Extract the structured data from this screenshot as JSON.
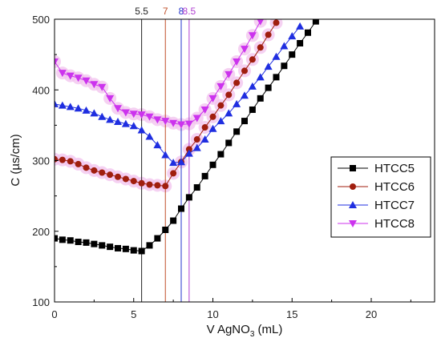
{
  "chart_data": {
    "type": "scatter",
    "title": "",
    "xlabel": {
      "prefix": "V AgNO",
      "sub": "3",
      "suffix": " (mL)"
    },
    "ylabel": "C (µs/cm)",
    "xlim": [
      0,
      24
    ],
    "ylim": [
      100,
      500
    ],
    "x_ticks": [
      0,
      5,
      10,
      15,
      20
    ],
    "y_ticks": [
      100,
      200,
      300,
      400,
      500
    ],
    "grid": false,
    "legend_position": "right",
    "vertical_lines": [
      {
        "x": 5.5,
        "label": "5.5",
        "color": "#222222"
      },
      {
        "x": 7,
        "label": "7",
        "color": "#c0502a"
      },
      {
        "x": 8,
        "label": "8",
        "color": "#2233cc"
      },
      {
        "x": 8.5,
        "label": "8.5",
        "color": "#b040d0"
      }
    ],
    "series": [
      {
        "name": "HTCC5",
        "marker": "square",
        "color": "#000000",
        "halo": false,
        "points": [
          [
            0,
            190
          ],
          [
            0.5,
            188
          ],
          [
            1,
            187
          ],
          [
            1.5,
            185
          ],
          [
            2,
            184
          ],
          [
            2.5,
            182
          ],
          [
            3,
            180
          ],
          [
            3.5,
            178
          ],
          [
            4,
            176
          ],
          [
            4.5,
            175
          ],
          [
            5,
            173
          ],
          [
            5.5,
            172
          ],
          [
            6,
            180
          ],
          [
            6.5,
            190
          ],
          [
            7,
            202
          ],
          [
            7.5,
            215
          ],
          [
            8,
            232
          ],
          [
            8.5,
            248
          ],
          [
            9,
            262
          ],
          [
            9.5,
            278
          ],
          [
            10,
            294
          ],
          [
            10.5,
            309
          ],
          [
            11,
            325
          ],
          [
            11.5,
            341
          ],
          [
            12,
            356
          ],
          [
            12.5,
            372
          ],
          [
            13,
            388
          ],
          [
            13.5,
            403
          ],
          [
            14,
            418
          ],
          [
            14.5,
            434
          ],
          [
            15,
            450
          ],
          [
            15.5,
            466
          ],
          [
            16,
            481
          ],
          [
            16.5,
            497
          ]
        ]
      },
      {
        "name": "HTCC6",
        "marker": "circle",
        "color": "#a01e0e",
        "halo": true,
        "points": [
          [
            0,
            302
          ],
          [
            0.5,
            301
          ],
          [
            1,
            299
          ],
          [
            1.5,
            295
          ],
          [
            2,
            290
          ],
          [
            2.5,
            286
          ],
          [
            3,
            283
          ],
          [
            3.5,
            280
          ],
          [
            4,
            277
          ],
          [
            4.5,
            274
          ],
          [
            5,
            271
          ],
          [
            5.5,
            268
          ],
          [
            6,
            266
          ],
          [
            6.5,
            265
          ],
          [
            7,
            264
          ],
          [
            7.5,
            282
          ],
          [
            8,
            298
          ],
          [
            8.5,
            316
          ],
          [
            9,
            330
          ],
          [
            9.5,
            347
          ],
          [
            10,
            362
          ],
          [
            10.5,
            378
          ],
          [
            11,
            393
          ],
          [
            11.5,
            410
          ],
          [
            12,
            427
          ],
          [
            12.5,
            443
          ],
          [
            13,
            460
          ],
          [
            13.5,
            478
          ],
          [
            14,
            495
          ]
        ]
      },
      {
        "name": "HTCC7",
        "marker": "triangle-up",
        "color": "#1f2ee0",
        "halo": false,
        "points": [
          [
            0,
            380
          ],
          [
            0.5,
            378
          ],
          [
            1,
            376
          ],
          [
            1.5,
            374
          ],
          [
            2,
            371
          ],
          [
            2.5,
            367
          ],
          [
            3,
            362
          ],
          [
            3.5,
            358
          ],
          [
            4,
            355
          ],
          [
            4.5,
            352
          ],
          [
            5,
            349
          ],
          [
            5.5,
            343
          ],
          [
            6,
            334
          ],
          [
            6.5,
            322
          ],
          [
            7,
            308
          ],
          [
            7.5,
            297
          ],
          [
            8,
            298
          ],
          [
            8.5,
            310
          ],
          [
            9,
            318
          ],
          [
            9.5,
            330
          ],
          [
            10,
            345
          ],
          [
            10.5,
            356
          ],
          [
            11,
            367
          ],
          [
            11.5,
            380
          ],
          [
            12,
            392
          ],
          [
            12.5,
            405
          ],
          [
            13,
            418
          ],
          [
            13.5,
            433
          ],
          [
            14,
            447
          ],
          [
            14.5,
            462
          ],
          [
            15,
            476
          ],
          [
            15.5,
            490
          ]
        ]
      },
      {
        "name": "HTCC8",
        "marker": "triangle-down",
        "color": "#cc33ee",
        "halo": true,
        "points": [
          [
            0,
            440
          ],
          [
            0.5,
            424
          ],
          [
            1,
            420
          ],
          [
            1.5,
            417
          ],
          [
            2,
            413
          ],
          [
            2.5,
            408
          ],
          [
            3,
            404
          ],
          [
            3.5,
            388
          ],
          [
            4,
            374
          ],
          [
            4.5,
            368
          ],
          [
            5,
            366
          ],
          [
            5.5,
            365
          ],
          [
            6,
            362
          ],
          [
            6.5,
            358
          ],
          [
            7,
            356
          ],
          [
            7.5,
            353
          ],
          [
            8,
            351
          ],
          [
            8.5,
            352
          ],
          [
            9,
            360
          ],
          [
            9.5,
            372
          ],
          [
            10,
            388
          ],
          [
            10.5,
            405
          ],
          [
            11,
            422
          ],
          [
            11.5,
            440
          ],
          [
            12,
            458
          ],
          [
            12.5,
            477
          ],
          [
            13,
            497
          ]
        ]
      }
    ]
  }
}
